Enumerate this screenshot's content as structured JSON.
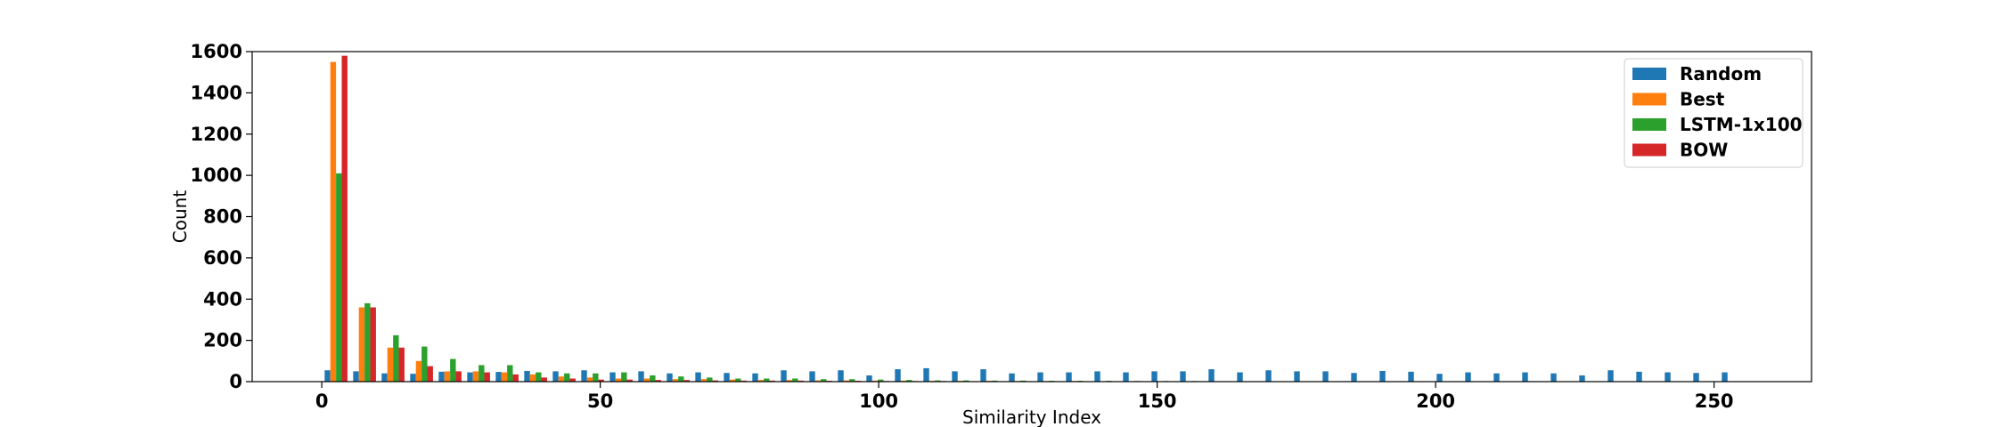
{
  "chart_data": {
    "type": "bar",
    "title": "",
    "xlabel": "Similarity Index",
    "ylabel": "Count",
    "xlim": [
      -12.5,
      267.5
    ],
    "ylim": [
      0,
      1600
    ],
    "x_ticks": [
      0,
      50,
      100,
      150,
      200,
      250
    ],
    "y_ticks": [
      0,
      200,
      400,
      600,
      800,
      1000,
      1200,
      1400,
      1600
    ],
    "grid": false,
    "legend_position": "top-right",
    "bin_width": 5.12,
    "bin_starts": [
      0,
      5.12,
      10.24,
      15.36,
      20.48,
      25.6,
      30.72,
      35.84,
      40.96,
      46.08,
      51.2,
      56.32,
      61.44,
      66.56,
      71.68,
      76.8,
      81.92,
      87.04,
      92.16,
      97.28,
      102.4,
      107.52,
      112.64,
      117.76,
      122.88,
      128,
      133.12,
      138.24,
      143.36,
      148.48,
      153.6,
      158.72,
      163.84,
      168.96,
      174.08,
      179.2,
      184.32,
      189.44,
      194.56,
      199.68,
      204.8,
      209.92,
      215.04,
      220.16,
      225.28,
      230.4,
      235.52,
      240.64,
      245.76,
      250.88
    ],
    "series": [
      {
        "name": "Random",
        "color": "#1f77b4",
        "values": [
          55,
          50,
          40,
          38,
          48,
          45,
          47,
          52,
          50,
          55,
          45,
          50,
          40,
          45,
          42,
          40,
          55,
          50,
          55,
          30,
          60,
          65,
          50,
          60,
          40,
          45,
          45,
          50,
          45,
          50,
          50,
          60,
          45,
          55,
          50,
          50,
          42,
          52,
          48,
          38,
          45,
          40,
          45,
          40,
          30,
          55,
          48,
          45,
          42,
          45
        ]
      },
      {
        "name": "Best",
        "color": "#ff7f0e",
        "values": [
          1550,
          360,
          165,
          100,
          50,
          50,
          45,
          35,
          25,
          20,
          15,
          15,
          12,
          12,
          10,
          8,
          8,
          6,
          6,
          5,
          5,
          4,
          4,
          4,
          3,
          3,
          3,
          2,
          2,
          2,
          2,
          2,
          1,
          1,
          1,
          1,
          1,
          1,
          1,
          1,
          0,
          0,
          0,
          0,
          0,
          0,
          0,
          0,
          0,
          0
        ]
      },
      {
        "name": "LSTM-1x100",
        "color": "#2ca02c",
        "values": [
          1010,
          380,
          225,
          170,
          110,
          80,
          80,
          45,
          40,
          40,
          45,
          30,
          25,
          20,
          15,
          15,
          15,
          12,
          12,
          10,
          8,
          6,
          6,
          5,
          5,
          4,
          4,
          4,
          3,
          3,
          3,
          2,
          2,
          2,
          2,
          2,
          1,
          1,
          1,
          1,
          1,
          1,
          1,
          0,
          0,
          0,
          0,
          0,
          0,
          0
        ]
      },
      {
        "name": "BOW",
        "color": "#d62728",
        "values": [
          1580,
          360,
          165,
          75,
          50,
          45,
          35,
          20,
          15,
          10,
          10,
          8,
          8,
          6,
          5,
          5,
          5,
          4,
          4,
          3,
          3,
          3,
          2,
          2,
          2,
          2,
          1,
          1,
          1,
          1,
          1,
          1,
          1,
          1,
          0,
          0,
          0,
          0,
          0,
          0,
          0,
          0,
          0,
          0,
          0,
          0,
          0,
          0,
          0,
          0
        ]
      }
    ]
  }
}
